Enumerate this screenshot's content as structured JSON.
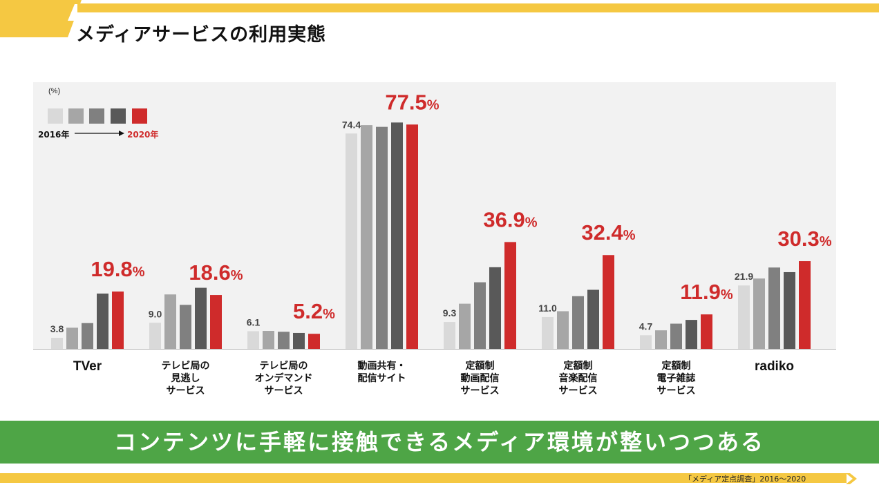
{
  "header": {
    "title": "メディアサービスの利用実態"
  },
  "message": {
    "text": "コンテンツに手軽に接触できるメディア環境が整いつつある"
  },
  "footer": {
    "source": "「メディア定点調査」2016～2020"
  },
  "colors": {
    "band_yellow": "#f5c842",
    "message_green": "#4ea546",
    "highlight_red": "#cf2b2b",
    "series": [
      "#d9d9d9",
      "#a6a6a6",
      "#808080",
      "#595959",
      "#cf2b2b"
    ]
  },
  "chart_data": {
    "type": "bar",
    "unit": "(%)",
    "legend": {
      "start": "2016年",
      "end": "2020年",
      "placement": "top-left"
    },
    "ylim": [
      0,
      80
    ],
    "categories": [
      [
        "TVer"
      ],
      [
        "テレビ局の",
        "見逃し",
        "サービス"
      ],
      [
        "テレビ局の",
        "オンデマンド",
        "サービス"
      ],
      [
        "動画共有・",
        "配信サイト"
      ],
      [
        "定額制",
        "動画配信",
        "サービス"
      ],
      [
        "定額制",
        "音楽配信",
        "サービス"
      ],
      [
        "定額制",
        "電子雑誌",
        "サービス"
      ],
      [
        "radiko"
      ]
    ],
    "series": [
      {
        "values": [
          3.8,
          9.0,
          6.1,
          74.4,
          9.3,
          11.0,
          4.7,
          21.9
        ]
      },
      {
        "values": [
          7.3,
          18.8,
          6.2,
          77.3,
          15.6,
          13.0,
          6.4,
          24.3
        ]
      },
      {
        "values": [
          8.9,
          15.2,
          5.9,
          76.7,
          23.0,
          18.2,
          8.7,
          28.1
        ]
      },
      {
        "values": [
          19.1,
          21.1,
          5.5,
          78.2,
          28.2,
          20.4,
          10.0,
          26.5
        ]
      },
      {
        "values": [
          19.8,
          18.6,
          5.2,
          77.5,
          36.9,
          32.4,
          11.9,
          30.3
        ]
      }
    ],
    "first_labels": [
      "3.8",
      "9.0",
      "6.1",
      "74.4",
      "9.3",
      "11.0",
      "4.7",
      "21.9"
    ],
    "last_labels": [
      "19.8",
      "18.6",
      "5.2",
      "77.5",
      "36.9",
      "32.4",
      "11.9",
      "30.3"
    ],
    "percent_sign": "%"
  }
}
